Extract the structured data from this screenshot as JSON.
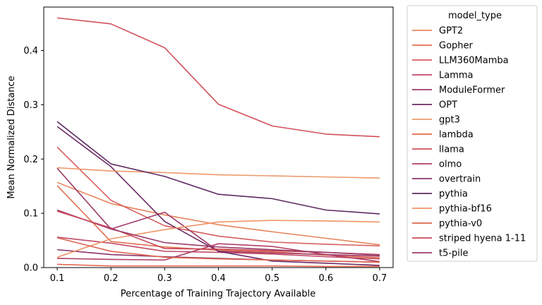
{
  "chart_data": {
    "type": "line",
    "xlabel": "Percentage of Training Trajectory Available",
    "ylabel": "Mean Normalized Distance",
    "xlim": [
      0.075,
      0.725
    ],
    "ylim": [
      0,
      0.48
    ],
    "x_ticks": [
      0.1,
      0.2,
      0.3,
      0.4,
      0.5,
      0.6,
      0.7
    ],
    "y_ticks": [
      0.0,
      0.1,
      0.2,
      0.3,
      0.4
    ],
    "x_tick_labels": [
      "0.1",
      "0.2",
      "0.3",
      "0.4",
      "0.5",
      "0.6",
      "0.7"
    ],
    "y_tick_labels": [
      "0.0",
      "0.1",
      "0.2",
      "0.3",
      "0.4"
    ],
    "grid": false,
    "legend": {
      "title": "model_type",
      "placement": "outside-right"
    },
    "x": [
      0.1,
      0.2,
      0.3,
      0.4,
      0.5,
      0.6,
      0.7
    ],
    "series": [
      {
        "name": "GPT2",
        "color": "#e8845c",
        "values": [
          0.157,
          0.118,
          0.097,
          0.079,
          0.066,
          0.054,
          0.042
        ]
      },
      {
        "name": "Gopher",
        "color": "#e0704f",
        "values": [
          0.151,
          0.048,
          0.038,
          0.032,
          0.029,
          0.023,
          0.018
        ]
      },
      {
        "name": "LLM360Mamba",
        "color": "#d55d5c",
        "values": [
          0.222,
          0.124,
          0.077,
          0.058,
          0.047,
          0.043,
          0.04
        ]
      },
      {
        "name": "Lamma",
        "color": "#c34a66",
        "values": [
          0.056,
          0.045,
          0.03,
          0.028,
          0.025,
          0.02,
          0.016
        ]
      },
      {
        "name": "ModuleFormer",
        "color": "#a03c6a",
        "values": [
          0.106,
          0.071,
          0.102,
          0.03,
          0.027,
          0.024,
          0.021
        ]
      },
      {
        "name": "OPT",
        "color": "#6b2a63",
        "values": [
          0.26,
          0.186,
          0.085,
          0.03,
          0.012,
          0.008,
          0.004
        ]
      },
      {
        "name": "gpt3",
        "color": "#ec9a6d",
        "values": [
          0.184,
          0.178,
          0.175,
          0.171,
          0.169,
          0.167,
          0.165
        ]
      },
      {
        "name": "lambda",
        "color": "#e6694f",
        "values": [
          0.006,
          0.003,
          0.003,
          0.003,
          0.003,
          0.002,
          0.002
        ]
      },
      {
        "name": "llama",
        "color": "#d1505b",
        "values": [
          0.46,
          0.449,
          0.405,
          0.301,
          0.261,
          0.246,
          0.241
        ]
      },
      {
        "name": "olmo",
        "color": "#b13f67",
        "values": [
          0.017,
          0.015,
          0.014,
          0.044,
          0.039,
          0.024,
          0.011
        ]
      },
      {
        "name": "overtrain",
        "color": "#8b3467",
        "values": [
          0.033,
          0.024,
          0.02,
          0.017,
          0.014,
          0.012,
          0.01
        ]
      },
      {
        "name": "pythia",
        "color": "#5e2a60",
        "values": [
          0.269,
          0.191,
          0.168,
          0.135,
          0.127,
          0.106,
          0.099
        ]
      },
      {
        "name": "pythia-bf16",
        "color": "#ee9467",
        "values": [
          0.019,
          0.053,
          0.07,
          0.084,
          0.087,
          0.086,
          0.084
        ]
      },
      {
        "name": "pythia-v0",
        "color": "#de6551",
        "values": [
          0.055,
          0.03,
          0.019,
          0.016,
          0.014,
          0.012,
          0.01
        ]
      },
      {
        "name": "striped hyena 1-11",
        "color": "#cc4a5c",
        "values": [
          0.104,
          0.073,
          0.035,
          0.034,
          0.031,
          0.028,
          0.024
        ]
      },
      {
        "name": "t5-pile",
        "color": "#9b3a67",
        "values": [
          0.183,
          0.071,
          0.046,
          0.038,
          0.033,
          0.028,
          0.023
        ]
      }
    ]
  }
}
